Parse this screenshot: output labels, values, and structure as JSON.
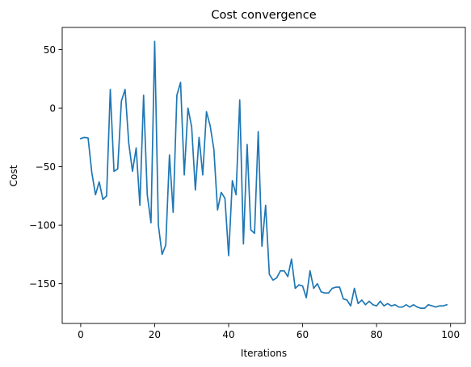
{
  "chart_data": {
    "type": "line",
    "title": "Cost convergence",
    "xlabel": "Iterations",
    "ylabel": "Cost",
    "xlim": [
      -5,
      104
    ],
    "ylim": [
      -184,
      69
    ],
    "xticks": [
      0,
      20,
      40,
      60,
      80,
      100
    ],
    "yticks": [
      50,
      0,
      -50,
      -100,
      -150
    ],
    "xtick_labels": [
      "0",
      "20",
      "40",
      "60",
      "80",
      "100"
    ],
    "ytick_labels": [
      "50",
      "0",
      "−50",
      "−100",
      "−150"
    ],
    "grid": false,
    "line_color": "#1f77b4",
    "x": [
      0,
      1,
      2,
      3,
      4,
      5,
      6,
      7,
      8,
      9,
      10,
      11,
      12,
      13,
      14,
      15,
      16,
      17,
      18,
      19,
      20,
      21,
      22,
      23,
      24,
      25,
      26,
      27,
      28,
      29,
      30,
      31,
      32,
      33,
      34,
      35,
      36,
      37,
      38,
      39,
      40,
      41,
      42,
      43,
      44,
      45,
      46,
      47,
      48,
      49,
      50,
      51,
      52,
      53,
      54,
      55,
      56,
      57,
      58,
      59,
      60,
      61,
      62,
      63,
      64,
      65,
      66,
      67,
      68,
      69,
      70,
      71,
      72,
      73,
      74,
      75,
      76,
      77,
      78,
      79,
      80,
      81,
      82,
      83,
      84,
      85,
      86,
      87,
      88,
      89,
      90,
      91,
      92,
      93,
      94,
      95,
      96,
      97,
      98,
      99
    ],
    "y": [
      -26,
      -25,
      -25.5,
      -55,
      -74,
      -63,
      -78,
      -75,
      16,
      -54,
      -52,
      6,
      16,
      -30,
      -54,
      -34,
      -83,
      11,
      -74,
      -98,
      57,
      -100,
      -125,
      -117,
      -40,
      -89,
      11,
      22,
      -57,
      0,
      -16,
      -70,
      -25,
      -57,
      -3,
      -15,
      -35,
      -87,
      -72,
      -77,
      -126,
      -62,
      -74,
      7,
      -116,
      -31,
      -104,
      -107,
      -20,
      -118,
      -83,
      -142,
      -147,
      -145,
      -139,
      -139,
      -144,
      -129,
      -154,
      -151,
      -152,
      -162,
      -139,
      -154,
      -150,
      -157,
      -158,
      -158,
      -154,
      -153,
      -153,
      -163,
      -164,
      -169,
      -154,
      -167,
      -164,
      -168,
      -165,
      -168,
      -169,
      -165,
      -169,
      -167,
      -169,
      -168,
      -170,
      -170,
      -168,
      -170,
      -168,
      -170,
      -171,
      -171,
      -168,
      -169,
      -170,
      -169,
      -169,
      -168
    ]
  }
}
